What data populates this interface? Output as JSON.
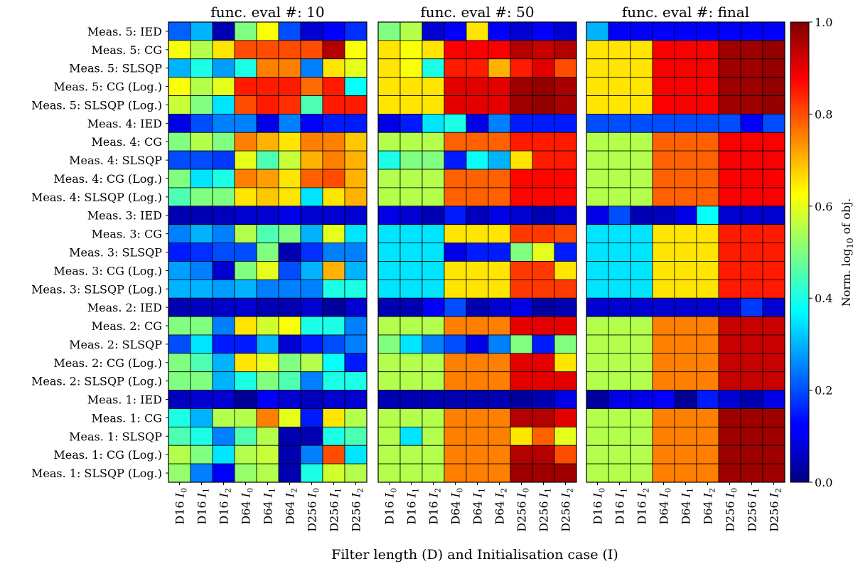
{
  "chart_data": {
    "type": "heatmap",
    "xlabel": "Filter length (D) and Initialisation case (I)",
    "columns": [
      {
        "d": "D16",
        "i": "0"
      },
      {
        "d": "D16",
        "i": "1"
      },
      {
        "d": "D16",
        "i": "2"
      },
      {
        "d": "D64",
        "i": "0"
      },
      {
        "d": "D64",
        "i": "1"
      },
      {
        "d": "D64",
        "i": "2"
      },
      {
        "d": "D256",
        "i": "0"
      },
      {
        "d": "D256",
        "i": "1"
      },
      {
        "d": "D256",
        "i": "2"
      }
    ],
    "rows": [
      "Meas. 5: IED",
      "Meas. 5: CG",
      "Meas. 5: SLSQP",
      "Meas. 5: CG (Log.)",
      "Meas. 5: SLSQP (Log.)",
      "Meas. 4: IED",
      "Meas. 4: CG",
      "Meas. 4: SLSQP",
      "Meas. 4: CG (Log.)",
      "Meas. 4: SLSQP (Log.)",
      "Meas. 3: IED",
      "Meas. 3: CG",
      "Meas. 3: SLSQP",
      "Meas. 3: CG (Log.)",
      "Meas. 3: SLSQP (Log.)",
      "Meas. 2: IED",
      "Meas. 2: CG",
      "Meas. 2: SLSQP",
      "Meas. 2: CG (Log.)",
      "Meas. 2: SLSQP (Log.)",
      "Meas. 1: IED",
      "Meas. 1: CG",
      "Meas. 1: SLSQP",
      "Meas. 1: CG (Log.)",
      "Meas. 1: SLSQP (Log.)"
    ],
    "panels": [
      {
        "title": "func. eval #: 10",
        "values": [
          [
            0.22,
            0.3,
            0.05,
            0.5,
            0.62,
            0.2,
            0.08,
            0.12,
            0.17
          ],
          [
            0.62,
            0.55,
            0.65,
            0.8,
            0.8,
            0.8,
            0.8,
            0.95,
            0.62
          ],
          [
            0.3,
            0.4,
            0.28,
            0.4,
            0.75,
            0.75,
            0.25,
            0.65,
            0.6
          ],
          [
            0.62,
            0.55,
            0.6,
            0.85,
            0.85,
            0.85,
            0.77,
            0.85,
            0.38
          ],
          [
            0.57,
            0.5,
            0.35,
            0.8,
            0.85,
            0.83,
            0.45,
            0.85,
            0.85
          ],
          [
            0.1,
            0.2,
            0.25,
            0.25,
            0.1,
            0.25,
            0.12,
            0.15,
            0.15
          ],
          [
            0.5,
            0.55,
            0.5,
            0.75,
            0.7,
            0.65,
            0.75,
            0.75,
            0.68
          ],
          [
            0.2,
            0.2,
            0.18,
            0.6,
            0.45,
            0.57,
            0.7,
            0.75,
            0.7
          ],
          [
            0.5,
            0.35,
            0.4,
            0.75,
            0.72,
            0.65,
            0.78,
            0.8,
            0.7
          ],
          [
            0.45,
            0.5,
            0.5,
            0.65,
            0.68,
            0.65,
            0.35,
            0.65,
            0.7
          ],
          [
            0.05,
            0.05,
            0.06,
            0.08,
            0.08,
            0.1,
            0.08,
            0.08,
            0.08
          ],
          [
            0.25,
            0.3,
            0.25,
            0.55,
            0.45,
            0.5,
            0.3,
            0.6,
            0.35
          ],
          [
            0.15,
            0.17,
            0.2,
            0.2,
            0.5,
            0.05,
            0.17,
            0.25,
            0.25
          ],
          [
            0.28,
            0.25,
            0.08,
            0.5,
            0.6,
            0.2,
            0.3,
            0.7,
            0.3
          ],
          [
            0.3,
            0.3,
            0.28,
            0.3,
            0.25,
            0.25,
            0.25,
            0.4,
            0.4
          ],
          [
            0.05,
            0.06,
            0.07,
            0.08,
            0.05,
            0.05,
            0.08,
            0.03,
            0.08
          ],
          [
            0.5,
            0.5,
            0.25,
            0.65,
            0.58,
            0.62,
            0.4,
            0.4,
            0.25
          ],
          [
            0.2,
            0.35,
            0.15,
            0.15,
            0.3,
            0.08,
            0.15,
            0.2,
            0.25
          ],
          [
            0.5,
            0.45,
            0.3,
            0.65,
            0.6,
            0.5,
            0.55,
            0.38,
            0.15
          ],
          [
            0.5,
            0.5,
            0.3,
            0.4,
            0.5,
            0.45,
            0.25,
            0.4,
            0.4
          ],
          [
            0.06,
            0.08,
            0.08,
            0.02,
            0.12,
            0.08,
            0.06,
            0.08,
            0.08
          ],
          [
            0.4,
            0.3,
            0.55,
            0.55,
            0.75,
            0.6,
            0.15,
            0.65,
            0.55
          ],
          [
            0.45,
            0.4,
            0.25,
            0.45,
            0.55,
            0.05,
            0.05,
            0.4,
            0.45
          ],
          [
            0.55,
            0.5,
            0.35,
            0.55,
            0.57,
            0.05,
            0.25,
            0.8,
            0.35
          ],
          [
            0.52,
            0.25,
            0.12,
            0.52,
            0.55,
            0.05,
            0.4,
            0.58,
            0.55
          ]
        ]
      },
      {
        "title": "func. eval #: 50",
        "values": [
          [
            0.5,
            0.55,
            0.08,
            0.12,
            0.65,
            0.12,
            0.08,
            0.12,
            0.08
          ],
          [
            0.65,
            0.62,
            0.65,
            0.88,
            0.88,
            0.88,
            0.95,
            0.93,
            0.95
          ],
          [
            0.65,
            0.62,
            0.4,
            0.85,
            0.85,
            0.7,
            0.85,
            0.9,
            0.8
          ],
          [
            0.65,
            0.65,
            0.65,
            0.9,
            0.9,
            0.9,
            0.97,
            0.98,
            0.96
          ],
          [
            0.65,
            0.65,
            0.65,
            0.9,
            0.9,
            0.9,
            0.97,
            0.98,
            0.96
          ],
          [
            0.1,
            0.15,
            0.35,
            0.4,
            0.1,
            0.25,
            0.15,
            0.15,
            0.15
          ],
          [
            0.55,
            0.55,
            0.55,
            0.78,
            0.78,
            0.78,
            0.85,
            0.85,
            0.85
          ],
          [
            0.4,
            0.5,
            0.5,
            0.15,
            0.38,
            0.3,
            0.65,
            0.85,
            0.85
          ],
          [
            0.55,
            0.55,
            0.55,
            0.78,
            0.78,
            0.78,
            0.87,
            0.87,
            0.87
          ],
          [
            0.55,
            0.55,
            0.55,
            0.78,
            0.78,
            0.78,
            0.87,
            0.87,
            0.87
          ],
          [
            0.1,
            0.08,
            0.05,
            0.15,
            0.06,
            0.1,
            0.08,
            0.05,
            0.08
          ],
          [
            0.35,
            0.35,
            0.35,
            0.65,
            0.65,
            0.65,
            0.82,
            0.82,
            0.8
          ],
          [
            0.35,
            0.35,
            0.35,
            0.1,
            0.15,
            0.15,
            0.5,
            0.6,
            0.15
          ],
          [
            0.35,
            0.35,
            0.35,
            0.65,
            0.65,
            0.65,
            0.82,
            0.82,
            0.65
          ],
          [
            0.35,
            0.35,
            0.35,
            0.65,
            0.65,
            0.65,
            0.82,
            0.82,
            0.82
          ],
          [
            0.05,
            0.05,
            0.12,
            0.2,
            0.05,
            0.08,
            0.1,
            0.03,
            0.05
          ],
          [
            0.55,
            0.55,
            0.55,
            0.75,
            0.75,
            0.75,
            0.9,
            0.9,
            0.9
          ],
          [
            0.5,
            0.35,
            0.25,
            0.2,
            0.1,
            0.25,
            0.5,
            0.15,
            0.5
          ],
          [
            0.55,
            0.55,
            0.55,
            0.75,
            0.75,
            0.75,
            0.9,
            0.9,
            0.65
          ],
          [
            0.55,
            0.55,
            0.55,
            0.75,
            0.75,
            0.75,
            0.9,
            0.9,
            0.9
          ],
          [
            0.05,
            0.05,
            0.05,
            0.05,
            0.05,
            0.05,
            0.03,
            0.05,
            0.1
          ],
          [
            0.55,
            0.55,
            0.55,
            0.75,
            0.75,
            0.75,
            0.95,
            0.95,
            0.9
          ],
          [
            0.55,
            0.35,
            0.55,
            0.75,
            0.75,
            0.75,
            0.65,
            0.78,
            0.6
          ],
          [
            0.55,
            0.55,
            0.55,
            0.75,
            0.75,
            0.75,
            0.95,
            0.95,
            0.8
          ],
          [
            0.55,
            0.55,
            0.55,
            0.75,
            0.75,
            0.75,
            0.97,
            0.97,
            0.97
          ]
        ]
      },
      {
        "title": "func. eval #: final",
        "values": [
          [
            0.3,
            0.12,
            0.12,
            0.12,
            0.12,
            0.12,
            0.12,
            0.12,
            0.12
          ],
          [
            0.65,
            0.65,
            0.65,
            0.88,
            0.88,
            0.88,
            0.97,
            0.97,
            0.98
          ],
          [
            0.65,
            0.65,
            0.65,
            0.88,
            0.88,
            0.88,
            0.97,
            0.97,
            0.98
          ],
          [
            0.65,
            0.65,
            0.65,
            0.88,
            0.88,
            0.88,
            0.97,
            0.97,
            0.98
          ],
          [
            0.65,
            0.65,
            0.65,
            0.88,
            0.88,
            0.88,
            0.97,
            0.97,
            0.98
          ],
          [
            0.2,
            0.2,
            0.2,
            0.2,
            0.2,
            0.2,
            0.2,
            0.12,
            0.2
          ],
          [
            0.55,
            0.55,
            0.55,
            0.78,
            0.78,
            0.78,
            0.88,
            0.88,
            0.88
          ],
          [
            0.55,
            0.55,
            0.55,
            0.78,
            0.78,
            0.78,
            0.88,
            0.88,
            0.88
          ],
          [
            0.55,
            0.55,
            0.55,
            0.78,
            0.78,
            0.78,
            0.88,
            0.88,
            0.88
          ],
          [
            0.55,
            0.55,
            0.55,
            0.78,
            0.78,
            0.78,
            0.88,
            0.88,
            0.88
          ],
          [
            0.1,
            0.2,
            0.05,
            0.06,
            0.1,
            0.38,
            0.08,
            0.08,
            0.08
          ],
          [
            0.35,
            0.35,
            0.35,
            0.65,
            0.65,
            0.65,
            0.85,
            0.85,
            0.85
          ],
          [
            0.35,
            0.35,
            0.35,
            0.65,
            0.65,
            0.65,
            0.85,
            0.85,
            0.85
          ],
          [
            0.35,
            0.35,
            0.35,
            0.65,
            0.65,
            0.65,
            0.85,
            0.85,
            0.85
          ],
          [
            0.35,
            0.35,
            0.35,
            0.65,
            0.65,
            0.65,
            0.85,
            0.85,
            0.85
          ],
          [
            0.08,
            0.08,
            0.08,
            0.08,
            0.08,
            0.08,
            0.08,
            0.18,
            0.08
          ],
          [
            0.55,
            0.55,
            0.55,
            0.75,
            0.75,
            0.75,
            0.93,
            0.93,
            0.93
          ],
          [
            0.55,
            0.55,
            0.55,
            0.75,
            0.75,
            0.75,
            0.93,
            0.93,
            0.93
          ],
          [
            0.55,
            0.55,
            0.55,
            0.75,
            0.75,
            0.75,
            0.93,
            0.93,
            0.93
          ],
          [
            0.55,
            0.55,
            0.55,
            0.75,
            0.75,
            0.75,
            0.93,
            0.93,
            0.93
          ],
          [
            0.03,
            0.1,
            0.1,
            0.12,
            0.02,
            0.15,
            0.08,
            0.05,
            0.1
          ],
          [
            0.55,
            0.55,
            0.55,
            0.75,
            0.75,
            0.75,
            0.97,
            0.97,
            0.97
          ],
          [
            0.55,
            0.55,
            0.55,
            0.75,
            0.75,
            0.75,
            0.97,
            0.97,
            0.97
          ],
          [
            0.55,
            0.55,
            0.55,
            0.75,
            0.75,
            0.75,
            0.97,
            0.97,
            0.97
          ],
          [
            0.55,
            0.55,
            0.55,
            0.75,
            0.75,
            0.75,
            0.97,
            0.97,
            0.97
          ]
        ]
      }
    ],
    "colorbar": {
      "label": "Norm. log10 of obj.",
      "min": 0.0,
      "max": 1.0,
      "ticks": [
        "0.0",
        "0.2",
        "0.4",
        "0.6",
        "0.8",
        "1.0"
      ],
      "colormap": "jet"
    }
  }
}
